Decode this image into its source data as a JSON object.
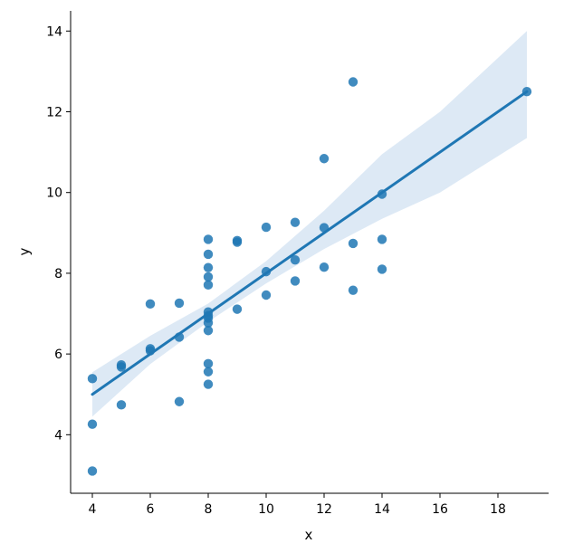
{
  "chart_data": {
    "type": "scatter",
    "xlabel": "x",
    "ylabel": "y",
    "xlim": [
      3.25,
      19.75
    ],
    "ylim": [
      2.55,
      14.5
    ],
    "xticks": [
      4,
      6,
      8,
      10,
      12,
      14,
      16,
      18
    ],
    "yticks": [
      4,
      6,
      8,
      10,
      12,
      14
    ],
    "grid": false,
    "colors": {
      "points": "#1f77b4",
      "fit_line": "#1f77b4",
      "band": "#c6dbef"
    },
    "points": [
      {
        "x": 10,
        "y": 8.04
      },
      {
        "x": 8,
        "y": 6.95
      },
      {
        "x": 13,
        "y": 7.58
      },
      {
        "x": 9,
        "y": 8.81
      },
      {
        "x": 11,
        "y": 8.33
      },
      {
        "x": 14,
        "y": 9.96
      },
      {
        "x": 6,
        "y": 7.24
      },
      {
        "x": 4,
        "y": 4.26
      },
      {
        "x": 12,
        "y": 10.84
      },
      {
        "x": 7,
        "y": 4.82
      },
      {
        "x": 5,
        "y": 5.68
      },
      {
        "x": 10,
        "y": 9.14
      },
      {
        "x": 8,
        "y": 8.14
      },
      {
        "x": 13,
        "y": 8.74
      },
      {
        "x": 9,
        "y": 8.77
      },
      {
        "x": 11,
        "y": 9.26
      },
      {
        "x": 14,
        "y": 8.1
      },
      {
        "x": 6,
        "y": 6.13
      },
      {
        "x": 4,
        "y": 3.1
      },
      {
        "x": 12,
        "y": 9.13
      },
      {
        "x": 7,
        "y": 7.26
      },
      {
        "x": 5,
        "y": 4.74
      },
      {
        "x": 10,
        "y": 7.46
      },
      {
        "x": 8,
        "y": 6.77
      },
      {
        "x": 13,
        "y": 12.74
      },
      {
        "x": 9,
        "y": 7.11
      },
      {
        "x": 11,
        "y": 7.81
      },
      {
        "x": 14,
        "y": 8.84
      },
      {
        "x": 6,
        "y": 6.08
      },
      {
        "x": 4,
        "y": 5.39
      },
      {
        "x": 12,
        "y": 8.15
      },
      {
        "x": 7,
        "y": 6.42
      },
      {
        "x": 5,
        "y": 5.73
      },
      {
        "x": 8,
        "y": 6.58
      },
      {
        "x": 8,
        "y": 5.76
      },
      {
        "x": 8,
        "y": 7.71
      },
      {
        "x": 8,
        "y": 8.84
      },
      {
        "x": 8,
        "y": 8.47
      },
      {
        "x": 8,
        "y": 7.04
      },
      {
        "x": 8,
        "y": 5.25
      },
      {
        "x": 19,
        "y": 12.5
      },
      {
        "x": 8,
        "y": 5.56
      },
      {
        "x": 8,
        "y": 7.91
      },
      {
        "x": 8,
        "y": 6.89
      }
    ],
    "regression": {
      "x_range": [
        4,
        19
      ],
      "line": {
        "y_start": 5.0,
        "y_end": 12.5
      },
      "confidence_band": [
        {
          "x": 4,
          "lower": 4.45,
          "upper": 5.55
        },
        {
          "x": 6,
          "lower": 5.75,
          "upper": 6.45
        },
        {
          "x": 8,
          "lower": 6.8,
          "upper": 7.25
        },
        {
          "x": 10,
          "lower": 7.75,
          "upper": 8.3
        },
        {
          "x": 12,
          "lower": 8.6,
          "upper": 9.55
        },
        {
          "x": 14,
          "lower": 9.35,
          "upper": 10.95
        },
        {
          "x": 16,
          "lower": 10.0,
          "upper": 12.0
        },
        {
          "x": 19,
          "lower": 11.35,
          "upper": 14.0
        }
      ]
    }
  }
}
